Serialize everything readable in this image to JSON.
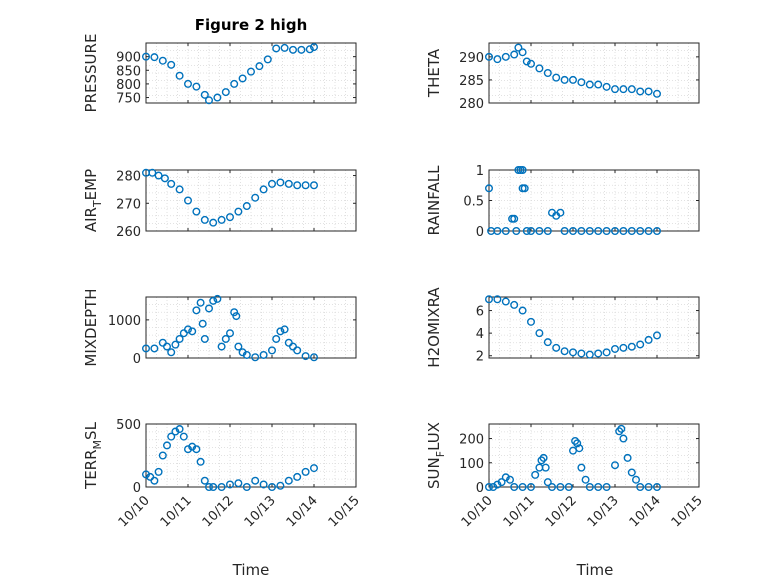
{
  "figure": {
    "title": "Figure 2 high",
    "marker_color": "#0072bd",
    "grid_color": "#d9d9d9",
    "axis_color": "#262626"
  },
  "chart_data": [
    {
      "type": "scatter",
      "name": "pressure",
      "ylabel": "PRESSURE",
      "ylabel_sub": "",
      "ylim": [
        730,
        950
      ],
      "yticks": [
        750,
        800,
        850,
        900
      ],
      "xlim": [
        0,
        5
      ],
      "xticks": [
        "10/10",
        "10/11",
        "10/12",
        "10/13",
        "10/14",
        "10/15"
      ],
      "xticks_shown": false,
      "grid": true,
      "points": [
        [
          0.0,
          900
        ],
        [
          0.2,
          898
        ],
        [
          0.4,
          885
        ],
        [
          0.6,
          870
        ],
        [
          0.8,
          830
        ],
        [
          1.0,
          800
        ],
        [
          1.2,
          790
        ],
        [
          1.4,
          760
        ],
        [
          1.5,
          740
        ],
        [
          1.7,
          750
        ],
        [
          1.9,
          770
        ],
        [
          2.1,
          800
        ],
        [
          2.3,
          820
        ],
        [
          2.5,
          845
        ],
        [
          2.7,
          865
        ],
        [
          2.9,
          890
        ],
        [
          3.1,
          930
        ],
        [
          3.3,
          932
        ],
        [
          3.5,
          925
        ],
        [
          3.7,
          925
        ],
        [
          3.9,
          927
        ],
        [
          4.0,
          935
        ]
      ]
    },
    {
      "type": "scatter",
      "name": "theta",
      "ylabel": "THETA",
      "ylabel_sub": "",
      "ylim": [
        280,
        293
      ],
      "yticks": [
        280,
        285,
        290
      ],
      "xlim": [
        0,
        5
      ],
      "xticks": [
        "10/10",
        "10/11",
        "10/12",
        "10/13",
        "10/14",
        "10/15"
      ],
      "xticks_shown": false,
      "grid": true,
      "points": [
        [
          0.0,
          290
        ],
        [
          0.2,
          289.5
        ],
        [
          0.4,
          290
        ],
        [
          0.6,
          290.5
        ],
        [
          0.7,
          292
        ],
        [
          0.8,
          291
        ],
        [
          0.9,
          289
        ],
        [
          1.0,
          288.5
        ],
        [
          1.2,
          287.5
        ],
        [
          1.4,
          286.5
        ],
        [
          1.6,
          285.5
        ],
        [
          1.8,
          285
        ],
        [
          2.0,
          285
        ],
        [
          2.2,
          284.5
        ],
        [
          2.4,
          284
        ],
        [
          2.6,
          284
        ],
        [
          2.8,
          283.5
        ],
        [
          3.0,
          283
        ],
        [
          3.2,
          283
        ],
        [
          3.4,
          283
        ],
        [
          3.6,
          282.5
        ],
        [
          3.8,
          282.5
        ],
        [
          4.0,
          282
        ]
      ]
    },
    {
      "type": "scatter",
      "name": "air_temp",
      "ylabel": "AIR",
      "ylabel_sub": "T",
      "ylabel_suffix": "EMP",
      "ylim": [
        260,
        282
      ],
      "yticks": [
        260,
        270,
        280
      ],
      "xlim": [
        0,
        5
      ],
      "xticks": [
        "10/10",
        "10/11",
        "10/12",
        "10/13",
        "10/14",
        "10/15"
      ],
      "xticks_shown": false,
      "grid": true,
      "points": [
        [
          0.0,
          281
        ],
        [
          0.15,
          281
        ],
        [
          0.3,
          280
        ],
        [
          0.45,
          279
        ],
        [
          0.6,
          277
        ],
        [
          0.8,
          275
        ],
        [
          1.0,
          271
        ],
        [
          1.2,
          267
        ],
        [
          1.4,
          264
        ],
        [
          1.6,
          263
        ],
        [
          1.8,
          264
        ],
        [
          2.0,
          265
        ],
        [
          2.2,
          267
        ],
        [
          2.4,
          269
        ],
        [
          2.6,
          272
        ],
        [
          2.8,
          275
        ],
        [
          3.0,
          277
        ],
        [
          3.2,
          277.5
        ],
        [
          3.4,
          277
        ],
        [
          3.6,
          276.5
        ],
        [
          3.8,
          276.5
        ],
        [
          4.0,
          276.5
        ]
      ]
    },
    {
      "type": "scatter",
      "name": "rainfall",
      "ylabel": "RAINFALL",
      "ylabel_sub": "",
      "ylim": [
        0,
        1
      ],
      "yticks": [
        0,
        0.5,
        1
      ],
      "xlim": [
        0,
        5
      ],
      "xticks": [
        "10/10",
        "10/11",
        "10/12",
        "10/13",
        "10/14",
        "10/15"
      ],
      "xticks_shown": false,
      "grid": true,
      "points": [
        [
          0.0,
          0.7
        ],
        [
          0.05,
          0
        ],
        [
          0.2,
          0
        ],
        [
          0.4,
          0
        ],
        [
          0.55,
          0.2
        ],
        [
          0.6,
          0.2
        ],
        [
          0.65,
          0
        ],
        [
          0.7,
          1.0
        ],
        [
          0.75,
          1.0
        ],
        [
          0.8,
          1.0
        ],
        [
          0.8,
          0.7
        ],
        [
          0.85,
          0.7
        ],
        [
          0.9,
          0
        ],
        [
          1.0,
          0
        ],
        [
          1.2,
          0
        ],
        [
          1.4,
          0
        ],
        [
          1.5,
          0.3
        ],
        [
          1.6,
          0.25
        ],
        [
          1.7,
          0.3
        ],
        [
          1.8,
          0
        ],
        [
          2.0,
          0
        ],
        [
          2.2,
          0
        ],
        [
          2.4,
          0
        ],
        [
          2.6,
          0
        ],
        [
          2.8,
          0
        ],
        [
          3.0,
          0
        ],
        [
          3.2,
          0
        ],
        [
          3.4,
          0
        ],
        [
          3.6,
          0
        ],
        [
          3.8,
          0
        ],
        [
          4.0,
          0
        ]
      ]
    },
    {
      "type": "scatter",
      "name": "mixdepth",
      "ylabel": "MIXDEPTH",
      "ylabel_sub": "",
      "ylim": [
        0,
        1600
      ],
      "yticks": [
        0,
        1000
      ],
      "xlim": [
        0,
        5
      ],
      "xticks": [
        "10/10",
        "10/11",
        "10/12",
        "10/13",
        "10/14",
        "10/15"
      ],
      "xticks_shown": false,
      "grid": true,
      "points": [
        [
          0.0,
          250
        ],
        [
          0.2,
          250
        ],
        [
          0.4,
          400
        ],
        [
          0.5,
          300
        ],
        [
          0.6,
          150
        ],
        [
          0.7,
          350
        ],
        [
          0.8,
          500
        ],
        [
          0.9,
          650
        ],
        [
          1.0,
          750
        ],
        [
          1.1,
          700
        ],
        [
          1.2,
          1250
        ],
        [
          1.3,
          1450
        ],
        [
          1.35,
          900
        ],
        [
          1.4,
          500
        ],
        [
          1.5,
          1300
        ],
        [
          1.6,
          1500
        ],
        [
          1.7,
          1550
        ],
        [
          1.8,
          300
        ],
        [
          1.9,
          500
        ],
        [
          2.0,
          650
        ],
        [
          2.1,
          1200
        ],
        [
          2.15,
          1100
        ],
        [
          2.2,
          300
        ],
        [
          2.3,
          150
        ],
        [
          2.4,
          80
        ],
        [
          2.6,
          20
        ],
        [
          2.8,
          80
        ],
        [
          3.0,
          200
        ],
        [
          3.1,
          500
        ],
        [
          3.2,
          700
        ],
        [
          3.3,
          750
        ],
        [
          3.4,
          400
        ],
        [
          3.5,
          300
        ],
        [
          3.6,
          200
        ],
        [
          3.8,
          50
        ],
        [
          4.0,
          20
        ]
      ]
    },
    {
      "type": "scatter",
      "name": "h2omixra",
      "ylabel": "H2OMIXRA",
      "ylabel_sub": "",
      "ylim": [
        1.8,
        7.2
      ],
      "yticks": [
        2,
        4,
        6
      ],
      "xlim": [
        0,
        5
      ],
      "xticks": [
        "10/10",
        "10/11",
        "10/12",
        "10/13",
        "10/14",
        "10/15"
      ],
      "xticks_shown": false,
      "grid": true,
      "points": [
        [
          0.0,
          7.0
        ],
        [
          0.2,
          7.0
        ],
        [
          0.4,
          6.8
        ],
        [
          0.6,
          6.5
        ],
        [
          0.8,
          6.0
        ],
        [
          1.0,
          5.0
        ],
        [
          1.2,
          4.0
        ],
        [
          1.4,
          3.2
        ],
        [
          1.6,
          2.7
        ],
        [
          1.8,
          2.4
        ],
        [
          2.0,
          2.3
        ],
        [
          2.2,
          2.2
        ],
        [
          2.4,
          2.1
        ],
        [
          2.6,
          2.2
        ],
        [
          2.8,
          2.3
        ],
        [
          3.0,
          2.6
        ],
        [
          3.2,
          2.7
        ],
        [
          3.4,
          2.8
        ],
        [
          3.6,
          3.0
        ],
        [
          3.8,
          3.4
        ],
        [
          4.0,
          3.8
        ]
      ]
    },
    {
      "type": "scatter",
      "name": "terr_msl",
      "ylabel": "TERR",
      "ylabel_sub": "M",
      "ylabel_suffix": "SL",
      "ylim": [
        0,
        500
      ],
      "yticks": [
        0,
        500
      ],
      "xlim": [
        0,
        5
      ],
      "xticks": [
        "10/10",
        "10/11",
        "10/12",
        "10/13",
        "10/14",
        "10/15"
      ],
      "xticks_shown": true,
      "grid": true,
      "points": [
        [
          0.0,
          100
        ],
        [
          0.1,
          80
        ],
        [
          0.2,
          50
        ],
        [
          0.3,
          120
        ],
        [
          0.4,
          250
        ],
        [
          0.5,
          330
        ],
        [
          0.6,
          400
        ],
        [
          0.7,
          440
        ],
        [
          0.8,
          460
        ],
        [
          0.9,
          400
        ],
        [
          1.0,
          300
        ],
        [
          1.1,
          320
        ],
        [
          1.2,
          300
        ],
        [
          1.3,
          200
        ],
        [
          1.4,
          50
        ],
        [
          1.5,
          0
        ],
        [
          1.6,
          0
        ],
        [
          1.8,
          0
        ],
        [
          2.0,
          20
        ],
        [
          2.2,
          30
        ],
        [
          2.4,
          0
        ],
        [
          2.6,
          50
        ],
        [
          2.8,
          20
        ],
        [
          3.0,
          0
        ],
        [
          3.2,
          10
        ],
        [
          3.4,
          50
        ],
        [
          3.6,
          80
        ],
        [
          3.8,
          120
        ],
        [
          4.0,
          150
        ]
      ]
    },
    {
      "type": "scatter",
      "name": "sun_flux",
      "ylabel": "SUN",
      "ylabel_sub": "F",
      "ylabel_suffix": "LUX",
      "ylim": [
        0,
        260
      ],
      "yticks": [
        0,
        100,
        200
      ],
      "xlim": [
        0,
        5
      ],
      "xticks": [
        "10/10",
        "10/11",
        "10/12",
        "10/13",
        "10/14",
        "10/15"
      ],
      "xticks_shown": true,
      "grid": true,
      "points": [
        [
          0.0,
          0
        ],
        [
          0.1,
          0
        ],
        [
          0.2,
          10
        ],
        [
          0.3,
          20
        ],
        [
          0.4,
          40
        ],
        [
          0.5,
          30
        ],
        [
          0.6,
          0
        ],
        [
          0.8,
          0
        ],
        [
          1.0,
          0
        ],
        [
          1.1,
          50
        ],
        [
          1.2,
          80
        ],
        [
          1.25,
          110
        ],
        [
          1.3,
          120
        ],
        [
          1.35,
          80
        ],
        [
          1.4,
          20
        ],
        [
          1.5,
          0
        ],
        [
          1.7,
          0
        ],
        [
          1.9,
          0
        ],
        [
          2.0,
          150
        ],
        [
          2.05,
          190
        ],
        [
          2.1,
          180
        ],
        [
          2.15,
          160
        ],
        [
          2.2,
          80
        ],
        [
          2.3,
          30
        ],
        [
          2.4,
          0
        ],
        [
          2.6,
          0
        ],
        [
          2.8,
          0
        ],
        [
          3.0,
          90
        ],
        [
          3.1,
          230
        ],
        [
          3.15,
          240
        ],
        [
          3.2,
          200
        ],
        [
          3.3,
          120
        ],
        [
          3.4,
          60
        ],
        [
          3.5,
          30
        ],
        [
          3.6,
          0
        ],
        [
          3.8,
          0
        ],
        [
          4.0,
          0
        ]
      ]
    }
  ],
  "xlabels": {
    "left": "Time",
    "right": "Time"
  }
}
